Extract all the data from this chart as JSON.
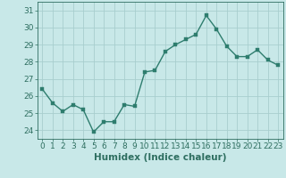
{
  "xlabel": "Humidex (Indice chaleur)",
  "x": [
    0,
    1,
    2,
    3,
    4,
    5,
    6,
    7,
    8,
    9,
    10,
    11,
    12,
    13,
    14,
    15,
    16,
    17,
    18,
    19,
    20,
    21,
    22,
    23
  ],
  "y": [
    26.4,
    25.6,
    25.1,
    25.5,
    25.2,
    23.9,
    24.5,
    24.5,
    25.5,
    25.4,
    27.4,
    27.5,
    28.6,
    29.0,
    29.3,
    29.6,
    30.7,
    29.9,
    28.9,
    28.3,
    28.3,
    28.7,
    28.1,
    27.8
  ],
  "line_color": "#2e7d6e",
  "marker_color": "#2e7d6e",
  "bg_color": "#c8e8e8",
  "grid_color": "#a8cece",
  "tick_color": "#2e6e60",
  "label_color": "#2e6e60",
  "ylim": [
    23.5,
    31.5
  ],
  "yticks": [
    24,
    25,
    26,
    27,
    28,
    29,
    30,
    31
  ],
  "xticks": [
    0,
    1,
    2,
    3,
    4,
    5,
    6,
    7,
    8,
    9,
    10,
    11,
    12,
    13,
    14,
    15,
    16,
    17,
    18,
    19,
    20,
    21,
    22,
    23
  ],
  "axis_fontsize": 7.5,
  "tick_fontsize": 6.5,
  "line_width": 1.0,
  "marker_size": 2.5
}
